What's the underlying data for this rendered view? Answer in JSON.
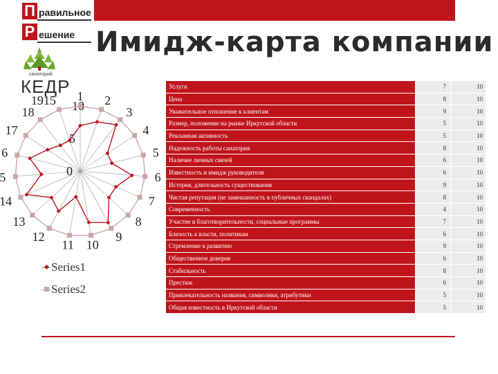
{
  "logo": {
    "letter1": "П",
    "word1": "равильное",
    "letter2": "Р",
    "word2": "ешение"
  },
  "title": "Имидж-карта компании",
  "kedr": {
    "small": "санаторий",
    "name": "КЕДР"
  },
  "colors": {
    "accent": "#c0141c",
    "series1": "#c0141c",
    "series2": "#c9a7a9",
    "grid": "#999999"
  },
  "chart_data": {
    "type": "radar",
    "axis_labels": [
      "1",
      "2",
      "3",
      "4",
      "5",
      "6",
      "7",
      "8",
      "9",
      "10",
      "11",
      "12",
      "13",
      "14",
      "5",
      "6",
      "17",
      "18",
      "1915"
    ],
    "scale_labels": [
      "0",
      "5",
      "10"
    ],
    "rmax": 10,
    "series": [
      {
        "name": "Series1",
        "values": [
          7,
          8,
          9,
          5,
          5,
          8,
          6,
          6,
          9,
          8,
          4,
          7,
          6,
          9,
          6,
          8,
          6,
          5,
          5
        ]
      },
      {
        "name": "Series2",
        "values": [
          10,
          10,
          10,
          10,
          10,
          10,
          10,
          10,
          10,
          10,
          10,
          10,
          10,
          10,
          10,
          10,
          10,
          10,
          10
        ]
      }
    ],
    "legend": "bottom-left"
  },
  "table": {
    "rows": [
      {
        "name": "Услуги",
        "v1": "7",
        "v2": "10"
      },
      {
        "name": "Цена",
        "v1": "8",
        "v2": "10"
      },
      {
        "name": "Уважительное отношение к клиентам",
        "v1": "9",
        "v2": "10"
      },
      {
        "name": "Размер, положение на рынке Иркутской области",
        "v1": "5",
        "v2": "10"
      },
      {
        "name": "Рекламная активность",
        "v1": "5",
        "v2": "10"
      },
      {
        "name": "Надежность работы санатория",
        "v1": "8",
        "v2": "10"
      },
      {
        "name": "Наличие личных связей",
        "v1": "6",
        "v2": "10"
      },
      {
        "name": "Известность и имидж руководителя",
        "v1": "6",
        "v2": "10"
      },
      {
        "name": "История, длительность существования",
        "v1": "9",
        "v2": "10"
      },
      {
        "name": "Чистая репутация (не замешанность в публичных скандалах)",
        "v1": "8",
        "v2": "10"
      },
      {
        "name": "Современность",
        "v1": "4",
        "v2": "10"
      },
      {
        "name": "Участие в благотворительности, социальные программы",
        "v1": "7",
        "v2": "10"
      },
      {
        "name": "Близость к власти, политикам",
        "v1": "6",
        "v2": "10"
      },
      {
        "name": "Стремление к развитию",
        "v1": "9",
        "v2": "10"
      },
      {
        "name": "Общественное доверие",
        "v1": "6",
        "v2": "10"
      },
      {
        "name": "Стабильность",
        "v1": "8",
        "v2": "10"
      },
      {
        "name": "Престиж",
        "v1": "6",
        "v2": "10"
      },
      {
        "name": "Привлекательность названия, символики, атрибутики",
        "v1": "5",
        "v2": "10"
      },
      {
        "name": "Общая известность в Иркутской области",
        "v1": "5",
        "v2": "10"
      }
    ]
  }
}
